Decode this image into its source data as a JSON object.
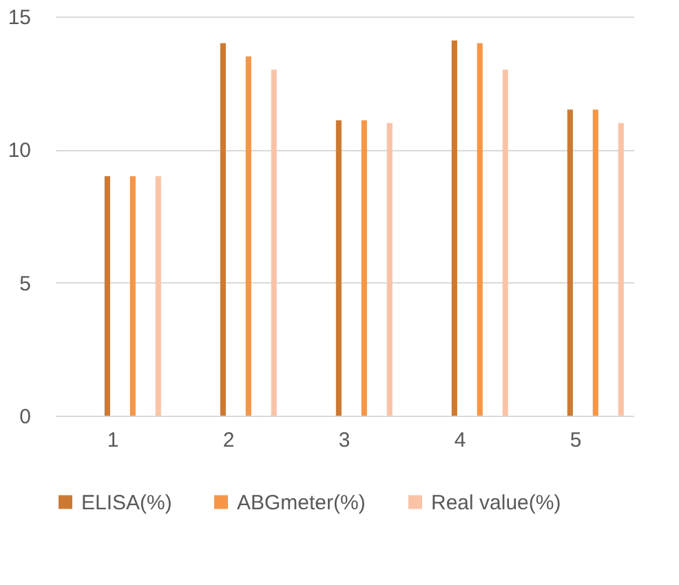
{
  "chart_data": {
    "type": "bar",
    "categories": [
      "1",
      "2",
      "3",
      "4",
      "5"
    ],
    "series": [
      {
        "name": "ELISA(%)",
        "color": "#cc7a33",
        "values": [
          9,
          14,
          11.1,
          14.1,
          11.5
        ]
      },
      {
        "name": "ABGmeter(%)",
        "color": "#f79646",
        "values": [
          9,
          13.5,
          11.1,
          14,
          11.5
        ]
      },
      {
        "name": "Real value(%)",
        "color": "#fac3a6",
        "values": [
          9,
          13,
          11,
          13,
          11
        ]
      }
    ],
    "ylim": [
      0,
      15
    ],
    "yticks": [
      0,
      5,
      10,
      15
    ],
    "grid": "y",
    "legend": "bottom"
  }
}
